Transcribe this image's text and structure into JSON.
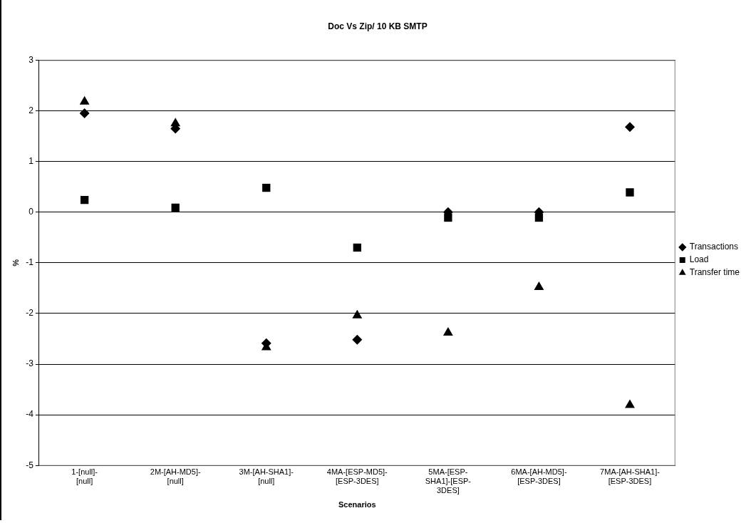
{
  "chart_data": {
    "type": "scatter",
    "title": "Doc Vs Zip/ 10 KB SMTP",
    "xlabel": "Scenarios",
    "ylabel": "%",
    "categories": [
      "1-[null]-[null]",
      "2M-[AH-MD5]-[null]",
      "3M-[AH-SHA1]-[null]",
      "4MA-[ESP-MD5]-[ESP-3DES]",
      "5MA-[ESP-SHA1]-[ESP-3DES]",
      "6MA-[AH-MD5]-[ESP-3DES]",
      "7MA-[AH-SHA1]-[ESP-3DES]"
    ],
    "series": [
      {
        "name": "Transactions",
        "color": "#000000",
        "marker": "diamond",
        "values": [
          1.95,
          1.65,
          -2.59,
          -2.52,
          0,
          0,
          1.68
        ]
      },
      {
        "name": "Load",
        "color": "#000000",
        "marker": "square",
        "values": [
          0.24,
          0.09,
          0.48,
          -0.7,
          -0.11,
          -0.11,
          0.39
        ]
      },
      {
        "name": "Transfer time",
        "color": "#000000",
        "marker": "triangle",
        "values": [
          2.18,
          1.75,
          -2.67,
          -2.04,
          -2.38,
          -1.48,
          -3.81
        ]
      }
    ],
    "ylim": [
      -5,
      3
    ],
    "yticks": [
      -5,
      -4,
      -3,
      -2,
      -1,
      0,
      1,
      2,
      3
    ],
    "grid": "y",
    "legend": "right"
  }
}
